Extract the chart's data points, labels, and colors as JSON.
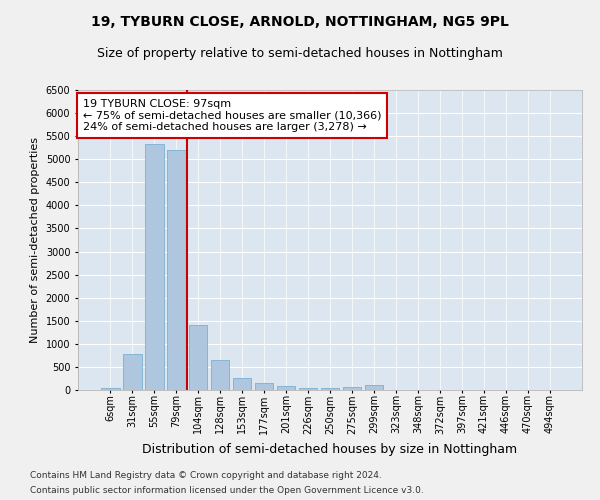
{
  "title": "19, TYBURN CLOSE, ARNOLD, NOTTINGHAM, NG5 9PL",
  "subtitle": "Size of property relative to semi-detached houses in Nottingham",
  "xlabel_bottom": "Distribution of semi-detached houses by size in Nottingham",
  "ylabel": "Number of semi-detached properties",
  "categories": [
    "6sqm",
    "31sqm",
    "55sqm",
    "79sqm",
    "104sqm",
    "128sqm",
    "153sqm",
    "177sqm",
    "201sqm",
    "226sqm",
    "250sqm",
    "275sqm",
    "299sqm",
    "323sqm",
    "348sqm",
    "372sqm",
    "397sqm",
    "421sqm",
    "446sqm",
    "470sqm",
    "494sqm"
  ],
  "values": [
    50,
    790,
    5320,
    5210,
    1400,
    640,
    270,
    145,
    85,
    50,
    50,
    70,
    110,
    0,
    0,
    0,
    0,
    0,
    0,
    0,
    0
  ],
  "bar_color": "#aec6de",
  "bar_edge_color": "#7aafd4",
  "property_line_color": "#cc0000",
  "annotation_text": "19 TYBURN CLOSE: 97sqm\n← 75% of semi-detached houses are smaller (10,366)\n24% of semi-detached houses are larger (3,278) →",
  "annotation_box_color": "#ffffff",
  "annotation_box_edge": "#cc0000",
  "ylim": [
    0,
    6500
  ],
  "yticks": [
    0,
    500,
    1000,
    1500,
    2000,
    2500,
    3000,
    3500,
    4000,
    4500,
    5000,
    5500,
    6000,
    6500
  ],
  "background_color": "#dce6f0",
  "grid_color": "#ffffff",
  "fig_background": "#f0f0f0",
  "footer_line1": "Contains HM Land Registry data © Crown copyright and database right 2024.",
  "footer_line2": "Contains public sector information licensed under the Open Government Licence v3.0.",
  "title_fontsize": 10,
  "subtitle_fontsize": 9,
  "tick_fontsize": 7,
  "ylabel_fontsize": 8,
  "xlabel_fontsize": 9,
  "annotation_fontsize": 8,
  "footer_fontsize": 6.5
}
